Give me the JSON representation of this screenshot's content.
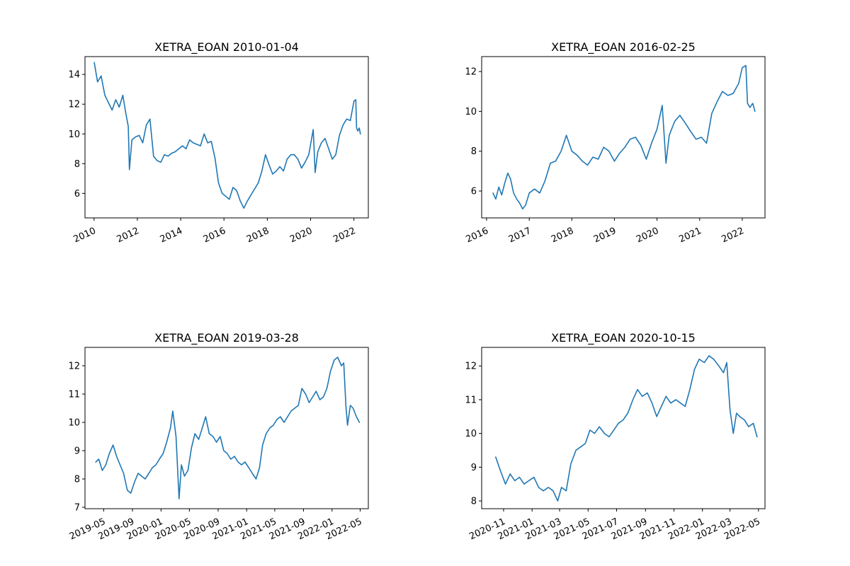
{
  "colors": {
    "series": "#1f77b4",
    "frame": "#000000"
  },
  "chart_data": [
    {
      "type": "line",
      "title": "XETRA_EOAN 2010-01-04",
      "xlabel": "",
      "ylabel": "",
      "xlim": [
        "2009-08-01",
        "2022-09-01"
      ],
      "ylim": [
        4.35,
        15.2
      ],
      "xticks": [
        {
          "date": "2010-01-01",
          "label": "2010"
        },
        {
          "date": "2012-01-01",
          "label": "2012"
        },
        {
          "date": "2014-01-01",
          "label": "2014"
        },
        {
          "date": "2016-01-01",
          "label": "2016"
        },
        {
          "date": "2018-01-01",
          "label": "2018"
        },
        {
          "date": "2020-01-01",
          "label": "2020"
        },
        {
          "date": "2022-01-01",
          "label": "2022"
        }
      ],
      "yticks": [
        6,
        8,
        10,
        12,
        14
      ],
      "grid": false,
      "series": [
        {
          "x": [
            "2010-01-04",
            "2010-03-01",
            "2010-05-01",
            "2010-07-01",
            "2010-09-01",
            "2010-11-01",
            "2011-01-01",
            "2011-03-01",
            "2011-05-01",
            "2011-06-15",
            "2011-08-01",
            "2011-08-20",
            "2011-10-01",
            "2011-12-01",
            "2012-02-01",
            "2012-04-01",
            "2012-06-01",
            "2012-08-01",
            "2012-10-01",
            "2012-12-01",
            "2013-02-01",
            "2013-04-01",
            "2013-06-01",
            "2013-08-01",
            "2013-10-01",
            "2013-12-01",
            "2014-02-01",
            "2014-04-01",
            "2014-06-01",
            "2014-08-01",
            "2014-10-01",
            "2014-12-01",
            "2015-02-01",
            "2015-04-01",
            "2015-06-01",
            "2015-08-01",
            "2015-10-01",
            "2015-12-01",
            "2016-02-01",
            "2016-04-01",
            "2016-06-01",
            "2016-08-01",
            "2016-10-01",
            "2016-12-01",
            "2017-02-01",
            "2017-04-01",
            "2017-06-01",
            "2017-08-01",
            "2017-10-01",
            "2017-12-01",
            "2018-02-01",
            "2018-04-01",
            "2018-06-01",
            "2018-08-01",
            "2018-10-01",
            "2018-12-01",
            "2019-02-01",
            "2019-04-01",
            "2019-06-01",
            "2019-08-01",
            "2019-10-01",
            "2019-12-01",
            "2020-02-15",
            "2020-03-18",
            "2020-05-01",
            "2020-07-01",
            "2020-09-01",
            "2020-11-01",
            "2021-01-01",
            "2021-03-01",
            "2021-05-01",
            "2021-07-01",
            "2021-09-01",
            "2021-11-01",
            "2022-01-01",
            "2022-02-01",
            "2022-02-15",
            "2022-03-08",
            "2022-04-01",
            "2022-04-20"
          ],
          "y": [
            14.8,
            13.5,
            13.9,
            12.6,
            12.1,
            11.6,
            12.3,
            11.8,
            12.6,
            11.5,
            10.5,
            7.6,
            9.6,
            9.8,
            9.9,
            9.4,
            10.6,
            11.0,
            8.5,
            8.2,
            8.1,
            8.6,
            8.5,
            8.7,
            8.8,
            9.0,
            9.2,
            9.0,
            9.6,
            9.4,
            9.3,
            9.2,
            10.0,
            9.4,
            9.5,
            8.4,
            6.7,
            6.0,
            5.8,
            5.6,
            6.4,
            6.2,
            5.5,
            5.0,
            5.5,
            5.9,
            6.3,
            6.7,
            7.5,
            8.6,
            7.9,
            7.3,
            7.5,
            7.8,
            7.5,
            8.3,
            8.6,
            8.6,
            8.3,
            7.7,
            8.1,
            8.6,
            10.3,
            7.4,
            8.8,
            9.4,
            9.7,
            9.0,
            8.3,
            8.6,
            9.9,
            10.6,
            11.0,
            10.9,
            12.2,
            12.3,
            10.4,
            10.2,
            10.4,
            10.0
          ]
        }
      ]
    },
    {
      "type": "line",
      "title": "XETRA_EOAN 2016-02-25",
      "xlabel": "",
      "ylabel": "",
      "xlim": [
        "2015-11-20",
        "2022-07-15"
      ],
      "ylim": [
        4.65,
        12.75
      ],
      "xticks": [
        {
          "date": "2016-01-01",
          "label": "2016"
        },
        {
          "date": "2017-01-01",
          "label": "2017"
        },
        {
          "date": "2018-01-01",
          "label": "2018"
        },
        {
          "date": "2019-01-01",
          "label": "2019"
        },
        {
          "date": "2020-01-01",
          "label": "2020"
        },
        {
          "date": "2021-01-01",
          "label": "2021"
        },
        {
          "date": "2022-01-01",
          "label": "2022"
        }
      ],
      "yticks": [
        6,
        8,
        10,
        12
      ],
      "grid": false,
      "series": [
        {
          "x": [
            "2016-02-25",
            "2016-03-20",
            "2016-04-15",
            "2016-05-10",
            "2016-06-05",
            "2016-07-01",
            "2016-07-25",
            "2016-08-20",
            "2016-09-15",
            "2016-10-10",
            "2016-11-05",
            "2016-12-01",
            "2017-01-01",
            "2017-02-15",
            "2017-04-01",
            "2017-05-15",
            "2017-07-01",
            "2017-08-15",
            "2017-10-01",
            "2017-11-15",
            "2018-01-01",
            "2018-02-15",
            "2018-04-01",
            "2018-05-15",
            "2018-07-01",
            "2018-08-15",
            "2018-10-01",
            "2018-11-15",
            "2019-01-01",
            "2019-02-15",
            "2019-04-01",
            "2019-05-15",
            "2019-07-01",
            "2019-08-15",
            "2019-10-01",
            "2019-11-15",
            "2020-01-01",
            "2020-02-15",
            "2020-03-18",
            "2020-04-15",
            "2020-06-01",
            "2020-07-15",
            "2020-09-01",
            "2020-10-15",
            "2020-12-01",
            "2021-01-15",
            "2021-03-01",
            "2021-04-15",
            "2021-06-01",
            "2021-07-15",
            "2021-09-01",
            "2021-10-15",
            "2021-12-01",
            "2022-01-01",
            "2022-02-01",
            "2022-02-15",
            "2022-03-08",
            "2022-04-01",
            "2022-04-20"
          ],
          "y": [
            5.9,
            5.6,
            6.2,
            5.8,
            6.4,
            6.9,
            6.6,
            5.9,
            5.6,
            5.4,
            5.1,
            5.3,
            5.9,
            6.1,
            5.9,
            6.5,
            7.4,
            7.5,
            8.0,
            8.8,
            8.0,
            7.8,
            7.5,
            7.3,
            7.7,
            7.6,
            8.2,
            8.0,
            7.5,
            7.9,
            8.2,
            8.6,
            8.7,
            8.3,
            7.6,
            8.4,
            9.1,
            10.3,
            7.4,
            8.8,
            9.5,
            9.8,
            9.4,
            9.0,
            8.6,
            8.7,
            8.4,
            9.9,
            10.5,
            11.0,
            10.8,
            10.9,
            11.4,
            12.2,
            12.3,
            10.4,
            10.2,
            10.4,
            10.0
          ]
        }
      ]
    },
    {
      "type": "line",
      "title": "XETRA_EOAN 2019-03-28",
      "xlabel": "",
      "ylabel": "",
      "xlim": [
        "2019-02-10",
        "2022-06-05"
      ],
      "ylim": [
        6.95,
        12.65
      ],
      "xticks": [
        {
          "date": "2019-05-01",
          "label": "2019-05"
        },
        {
          "date": "2019-09-01",
          "label": "2019-09"
        },
        {
          "date": "2020-01-01",
          "label": "2020-01"
        },
        {
          "date": "2020-05-01",
          "label": "2020-05"
        },
        {
          "date": "2020-09-01",
          "label": "2020-09"
        },
        {
          "date": "2021-01-01",
          "label": "2021-01"
        },
        {
          "date": "2021-05-01",
          "label": "2021-05"
        },
        {
          "date": "2021-09-01",
          "label": "2021-09"
        },
        {
          "date": "2022-01-01",
          "label": "2022-01"
        },
        {
          "date": "2022-05-01",
          "label": "2022-05"
        }
      ],
      "yticks": [
        7,
        8,
        9,
        10,
        11,
        12
      ],
      "grid": false,
      "series": [
        {
          "x": [
            "2019-03-28",
            "2019-04-10",
            "2019-04-25",
            "2019-05-10",
            "2019-05-25",
            "2019-06-10",
            "2019-06-25",
            "2019-07-10",
            "2019-07-25",
            "2019-08-10",
            "2019-08-25",
            "2019-09-10",
            "2019-09-25",
            "2019-10-10",
            "2019-10-25",
            "2019-11-10",
            "2019-11-25",
            "2019-12-10",
            "2019-12-25",
            "2020-01-10",
            "2020-01-25",
            "2020-02-10",
            "2020-02-20",
            "2020-03-05",
            "2020-03-18",
            "2020-03-28",
            "2020-04-10",
            "2020-04-25",
            "2020-05-10",
            "2020-05-25",
            "2020-06-10",
            "2020-06-25",
            "2020-07-10",
            "2020-07-25",
            "2020-08-10",
            "2020-08-25",
            "2020-09-10",
            "2020-09-25",
            "2020-10-10",
            "2020-10-25",
            "2020-11-10",
            "2020-11-25",
            "2020-12-10",
            "2020-12-25",
            "2021-01-10",
            "2021-01-25",
            "2021-02-10",
            "2021-02-25",
            "2021-03-10",
            "2021-03-25",
            "2021-04-10",
            "2021-04-25",
            "2021-05-10",
            "2021-05-25",
            "2021-06-10",
            "2021-06-25",
            "2021-07-10",
            "2021-07-25",
            "2021-08-10",
            "2021-08-25",
            "2021-09-10",
            "2021-09-25",
            "2021-10-10",
            "2021-10-25",
            "2021-11-10",
            "2021-11-25",
            "2021-12-10",
            "2021-12-25",
            "2022-01-10",
            "2022-01-25",
            "2022-02-10",
            "2022-02-20",
            "2022-03-01",
            "2022-03-08",
            "2022-03-20",
            "2022-04-01",
            "2022-04-15",
            "2022-04-28"
          ],
          "y": [
            8.6,
            8.7,
            8.3,
            8.5,
            8.9,
            9.2,
            8.8,
            8.5,
            8.2,
            7.6,
            7.5,
            7.9,
            8.2,
            8.1,
            8.0,
            8.2,
            8.4,
            8.5,
            8.7,
            8.9,
            9.3,
            9.8,
            10.4,
            9.5,
            7.3,
            8.5,
            8.1,
            8.3,
            9.1,
            9.6,
            9.4,
            9.8,
            10.2,
            9.6,
            9.5,
            9.3,
            9.5,
            9.0,
            8.9,
            8.7,
            8.8,
            8.6,
            8.5,
            8.6,
            8.4,
            8.2,
            8.0,
            8.4,
            9.2,
            9.6,
            9.8,
            9.9,
            10.1,
            10.2,
            10.0,
            10.2,
            10.4,
            10.5,
            10.6,
            11.2,
            11.0,
            10.7,
            10.9,
            11.1,
            10.8,
            10.9,
            11.2,
            11.8,
            12.2,
            12.3,
            12.0,
            12.1,
            10.6,
            9.9,
            10.6,
            10.5,
            10.2,
            10.0
          ]
        }
      ]
    },
    {
      "type": "line",
      "title": "XETRA_EOAN 2020-10-15",
      "xlabel": "",
      "ylabel": "",
      "xlim": [
        "2020-09-15",
        "2022-05-15"
      ],
      "ylim": [
        7.77,
        12.55
      ],
      "xticks": [
        {
          "date": "2020-11-01",
          "label": "2020-11"
        },
        {
          "date": "2021-01-01",
          "label": "2021-01"
        },
        {
          "date": "2021-03-01",
          "label": "2021-03"
        },
        {
          "date": "2021-05-01",
          "label": "2021-05"
        },
        {
          "date": "2021-07-01",
          "label": "2021-07"
        },
        {
          "date": "2021-09-01",
          "label": "2021-09"
        },
        {
          "date": "2021-11-01",
          "label": "2021-11"
        },
        {
          "date": "2022-01-01",
          "label": "2022-01"
        },
        {
          "date": "2022-03-01",
          "label": "2022-03"
        },
        {
          "date": "2022-05-01",
          "label": "2022-05"
        }
      ],
      "yticks": [
        8,
        9,
        10,
        11,
        12
      ],
      "grid": false,
      "series": [
        {
          "x": [
            "2020-10-15",
            "2020-10-25",
            "2020-11-05",
            "2020-11-15",
            "2020-11-25",
            "2020-12-05",
            "2020-12-15",
            "2020-12-25",
            "2021-01-05",
            "2021-01-15",
            "2021-01-25",
            "2021-02-05",
            "2021-02-15",
            "2021-02-25",
            "2021-03-05",
            "2021-03-15",
            "2021-03-25",
            "2021-04-05",
            "2021-04-15",
            "2021-04-25",
            "2021-05-05",
            "2021-05-15",
            "2021-05-25",
            "2021-06-05",
            "2021-06-15",
            "2021-06-25",
            "2021-07-05",
            "2021-07-15",
            "2021-07-25",
            "2021-08-05",
            "2021-08-15",
            "2021-08-25",
            "2021-09-05",
            "2021-09-15",
            "2021-09-25",
            "2021-10-05",
            "2021-10-15",
            "2021-10-25",
            "2021-11-05",
            "2021-11-15",
            "2021-11-25",
            "2021-12-05",
            "2021-12-15",
            "2021-12-25",
            "2022-01-05",
            "2022-01-15",
            "2022-01-25",
            "2022-02-05",
            "2022-02-15",
            "2022-02-22",
            "2022-03-01",
            "2022-03-08",
            "2022-03-15",
            "2022-03-22",
            "2022-04-01",
            "2022-04-10",
            "2022-04-20",
            "2022-04-28"
          ],
          "y": [
            9.3,
            8.9,
            8.5,
            8.8,
            8.6,
            8.7,
            8.5,
            8.6,
            8.7,
            8.4,
            8.3,
            8.4,
            8.3,
            8.0,
            8.4,
            8.3,
            9.1,
            9.5,
            9.6,
            9.7,
            10.1,
            10.0,
            10.2,
            10.0,
            9.9,
            10.1,
            10.3,
            10.4,
            10.6,
            11.0,
            11.3,
            11.1,
            11.2,
            10.9,
            10.5,
            10.8,
            11.1,
            10.9,
            11.0,
            10.9,
            10.8,
            11.3,
            11.9,
            12.2,
            12.1,
            12.3,
            12.2,
            12.0,
            11.8,
            12.1,
            10.7,
            10.0,
            10.6,
            10.5,
            10.4,
            10.2,
            10.3,
            9.9
          ]
        }
      ]
    }
  ]
}
